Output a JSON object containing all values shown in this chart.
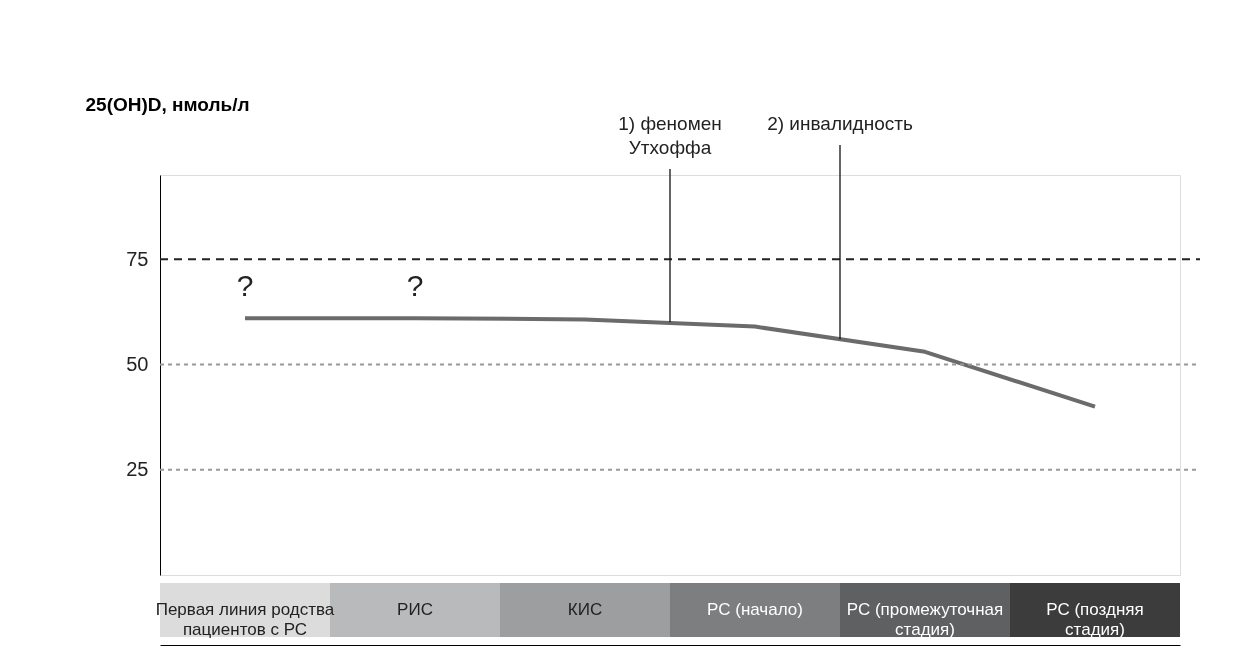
{
  "chart_data": {
    "type": "line",
    "ylabel": "25(OH)D, нмоль/л",
    "categories": [
      "Первая линия родства пациентов с РС",
      "РИС",
      "КИС",
      "РС (начало)",
      "РС (промежуточная стадия)",
      "РС (поздняя стадия)"
    ],
    "colors": [
      "#dcdcdd",
      "#b9babc",
      "#9d9ea0",
      "#7d7e80",
      "#5f6062",
      "#3c3c3c"
    ],
    "series": [
      {
        "color": "#6a6b6d",
        "values": [
          61,
          61,
          60.7,
          59,
          53,
          40
        ]
      }
    ],
    "ylim": [
      0,
      95
    ],
    "yticks": [
      25,
      50,
      75
    ],
    "ref_lines": [
      {
        "axis": "y",
        "value": 75,
        "color": "#222222",
        "line_style": "dashed"
      },
      {
        "axis": "y",
        "value": 50,
        "color": "#999999",
        "line_style": "dotted"
      },
      {
        "axis": "y",
        "value": 25,
        "color": "#999999",
        "line_style": "dotted"
      }
    ],
    "annotations": [
      "?",
      "?",
      {
        "text": "1) феномен Утхоффа",
        "y": 60
      },
      {
        "text": "2) инвалидность",
        "y": 56
      }
    ],
    "marker": "none",
    "line_style": "solid",
    "grid": false
  }
}
